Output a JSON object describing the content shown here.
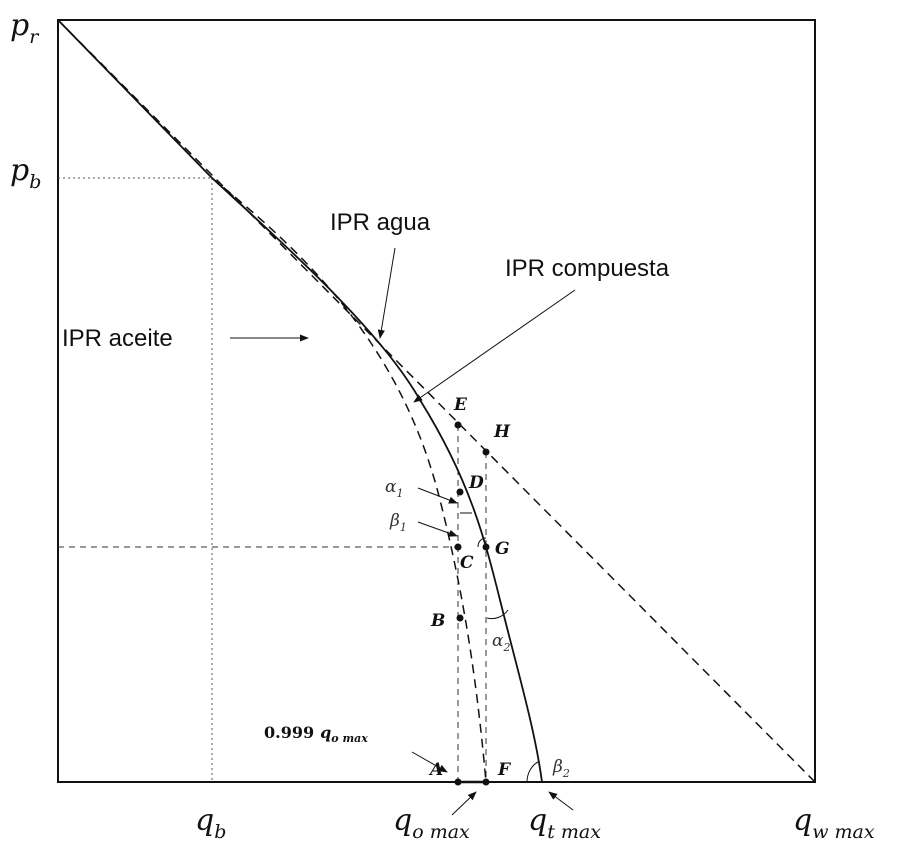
{
  "axis_labels": {
    "pr": "p",
    "pr_sub": "r",
    "pb": "p",
    "pb_sub": "b",
    "qb": "q",
    "qb_sub": "b",
    "qomax": "q",
    "qomax_sub": "o max",
    "qtmax": "q",
    "qtmax_sub": "t max",
    "qwmax": "q",
    "qwmax_sub": "w max"
  },
  "curve_labels": {
    "water": "IPR agua",
    "composite": "IPR compuesta",
    "oil": "IPR aceite"
  },
  "points": {
    "A": "A",
    "B": "B",
    "C": "C",
    "D": "D",
    "E": "E",
    "F": "F",
    "G": "G",
    "H": "H"
  },
  "angles": {
    "alpha1": "α",
    "alpha1_sub": "1",
    "beta1": "β",
    "beta1_sub": "1",
    "alpha2": "α",
    "alpha2_sub": "2",
    "beta2": "β",
    "beta2_sub": "2"
  },
  "annotation": {
    "value": "0.999",
    "q": "q",
    "sub": "o max"
  },
  "colors": {
    "line": "#111111",
    "guide": "#555555"
  }
}
